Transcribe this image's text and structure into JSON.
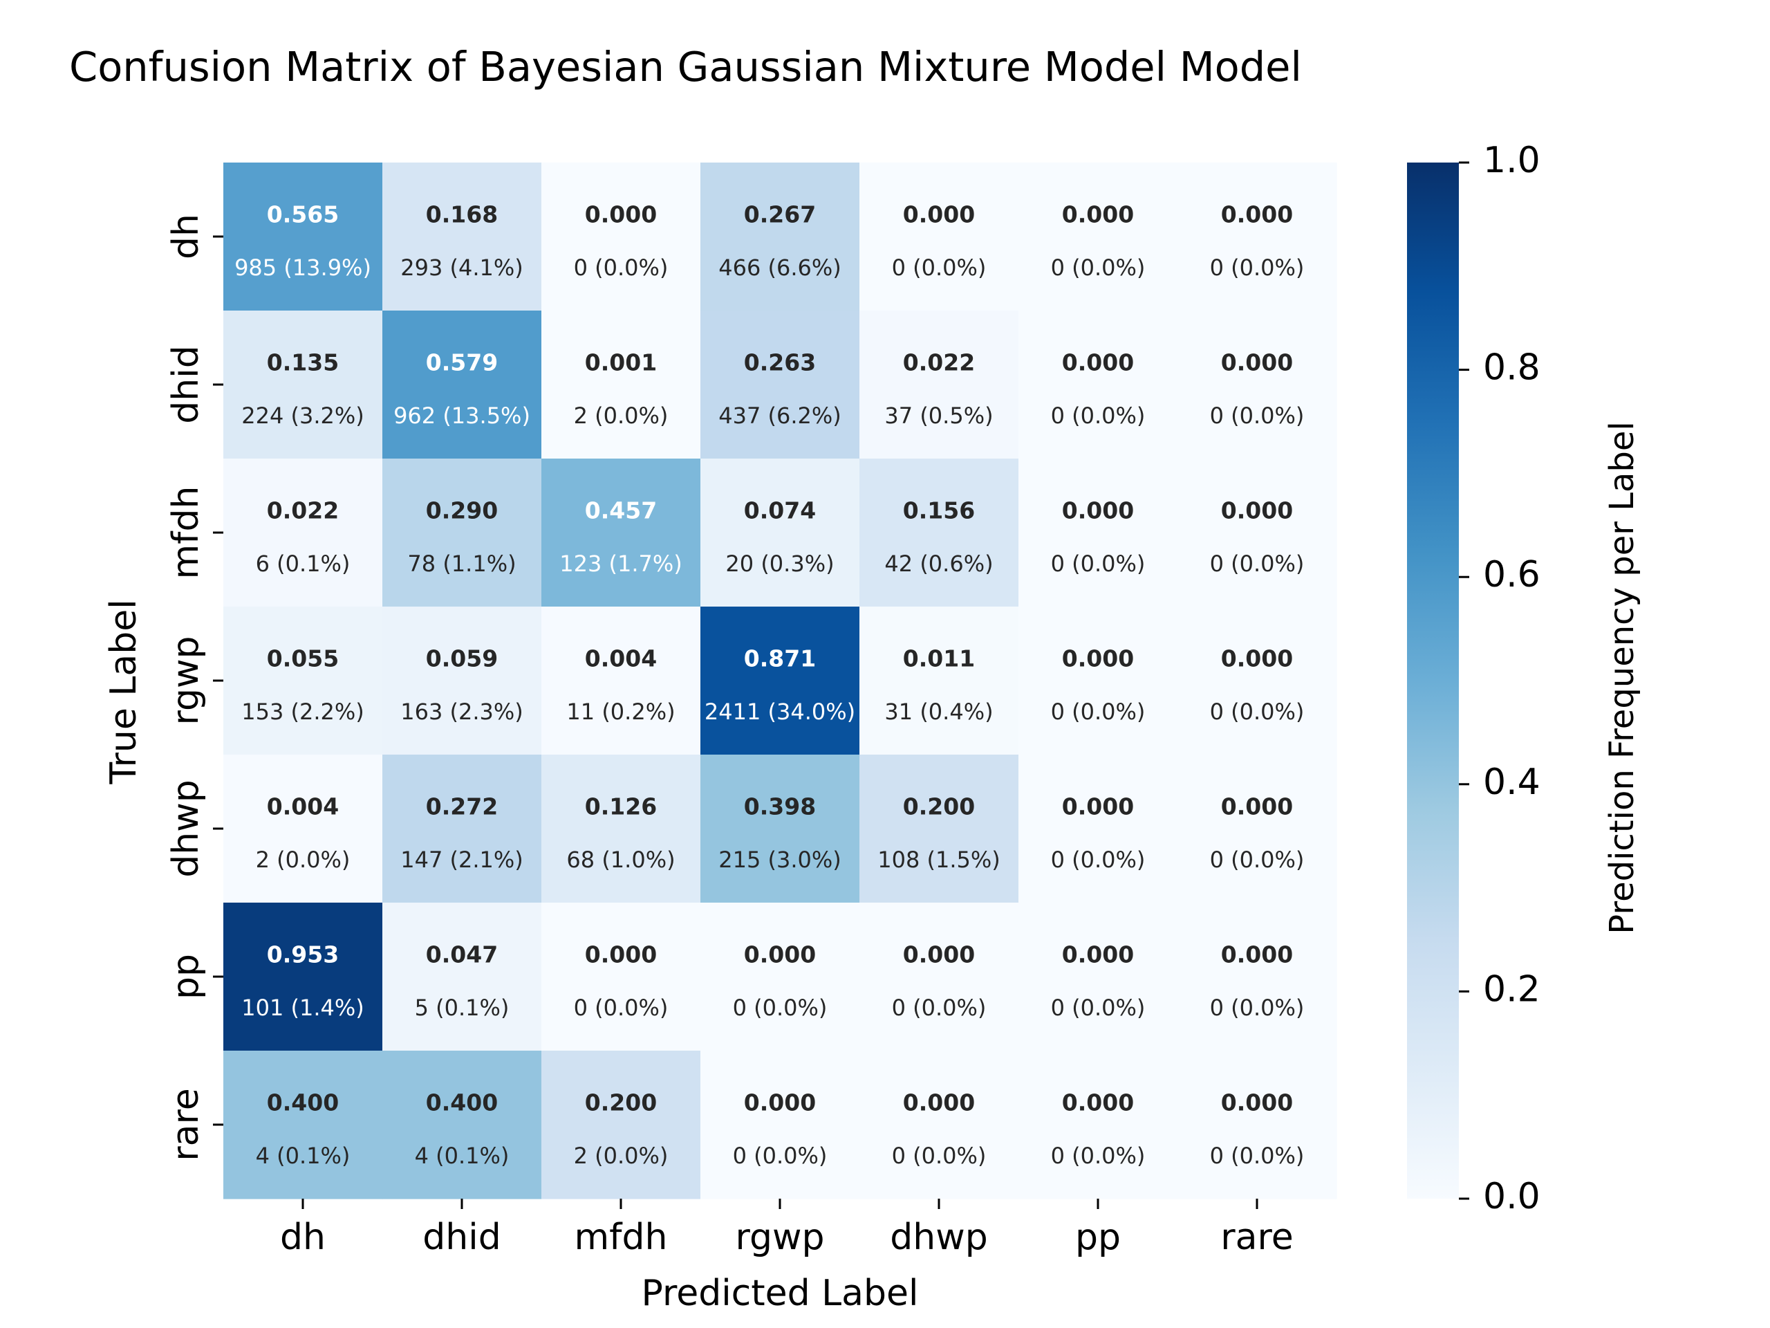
{
  "chart_data": {
    "type": "heatmap",
    "title": "Confusion Matrix of Bayesian Gaussian Mixture Model Model",
    "xlabel": "Predicted Label",
    "ylabel": "True Label",
    "x_categories": [
      "dh",
      "dhid",
      "mfdh",
      "rgwp",
      "dhwp",
      "pp",
      "rare"
    ],
    "y_categories": [
      "dh",
      "dhid",
      "mfdh",
      "rgwp",
      "dhwp",
      "pp",
      "rare"
    ],
    "values": [
      [
        0.565,
        0.168,
        0.0,
        0.267,
        0.0,
        0.0,
        0.0
      ],
      [
        0.135,
        0.579,
        0.001,
        0.263,
        0.022,
        0.0,
        0.0
      ],
      [
        0.022,
        0.29,
        0.457,
        0.074,
        0.156,
        0.0,
        0.0
      ],
      [
        0.055,
        0.059,
        0.004,
        0.871,
        0.011,
        0.0,
        0.0
      ],
      [
        0.004,
        0.272,
        0.126,
        0.398,
        0.2,
        0.0,
        0.0
      ],
      [
        0.953,
        0.047,
        0.0,
        0.0,
        0.0,
        0.0,
        0.0
      ],
      [
        0.4,
        0.4,
        0.2,
        0.0,
        0.0,
        0.0,
        0.0
      ]
    ],
    "value_labels": [
      [
        "0.565",
        "0.168",
        "0.000",
        "0.267",
        "0.000",
        "0.000",
        "0.000"
      ],
      [
        "0.135",
        "0.579",
        "0.001",
        "0.263",
        "0.022",
        "0.000",
        "0.000"
      ],
      [
        "0.022",
        "0.290",
        "0.457",
        "0.074",
        "0.156",
        "0.000",
        "0.000"
      ],
      [
        "0.055",
        "0.059",
        "0.004",
        "0.871",
        "0.011",
        "0.000",
        "0.000"
      ],
      [
        "0.004",
        "0.272",
        "0.126",
        "0.398",
        "0.200",
        "0.000",
        "0.000"
      ],
      [
        "0.953",
        "0.047",
        "0.000",
        "0.000",
        "0.000",
        "0.000",
        "0.000"
      ],
      [
        "0.400",
        "0.400",
        "0.200",
        "0.000",
        "0.000",
        "0.000",
        "0.000"
      ]
    ],
    "count_labels": [
      [
        "985 (13.9%)",
        "293 (4.1%)",
        "0 (0.0%)",
        "466 (6.6%)",
        "0 (0.0%)",
        "0 (0.0%)",
        "0 (0.0%)"
      ],
      [
        "224 (3.2%)",
        "962 (13.5%)",
        "2 (0.0%)",
        "437 (6.2%)",
        "37 (0.5%)",
        "0 (0.0%)",
        "0 (0.0%)"
      ],
      [
        "6 (0.1%)",
        "78 (1.1%)",
        "123 (1.7%)",
        "20 (0.3%)",
        "42 (0.6%)",
        "0 (0.0%)",
        "0 (0.0%)"
      ],
      [
        "153 (2.2%)",
        "163 (2.3%)",
        "11 (0.2%)",
        "2411 (34.0%)",
        "31 (0.4%)",
        "0 (0.0%)",
        "0 (0.0%)"
      ],
      [
        "2 (0.0%)",
        "147 (2.1%)",
        "68 (1.0%)",
        "215 (3.0%)",
        "108 (1.5%)",
        "0 (0.0%)",
        "0 (0.0%)"
      ],
      [
        "101 (1.4%)",
        "5 (0.1%)",
        "0 (0.0%)",
        "0 (0.0%)",
        "0 (0.0%)",
        "0 (0.0%)",
        "0 (0.0%)"
      ],
      [
        "4 (0.1%)",
        "4 (0.1%)",
        "2 (0.0%)",
        "0 (0.0%)",
        "0 (0.0%)",
        "0 (0.0%)",
        "0 (0.0%)"
      ]
    ],
    "colorbar": {
      "label": "Prediction Frequency per Label",
      "range": [
        0.0,
        1.0
      ],
      "ticks": [
        0.0,
        0.2,
        0.4,
        0.6,
        0.8,
        1.0
      ],
      "tick_labels": [
        "0.0",
        "0.2",
        "0.4",
        "0.6",
        "0.8",
        "1.0"
      ],
      "colormap": "Blues"
    },
    "grid": false
  }
}
